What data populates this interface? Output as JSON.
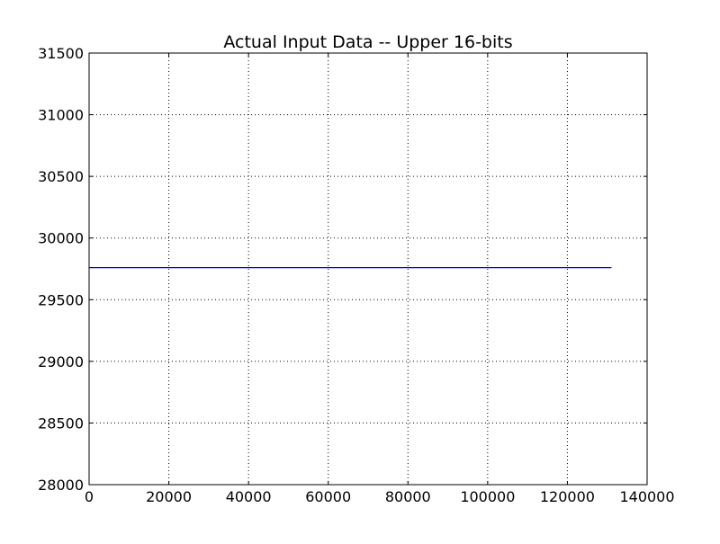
{
  "chart_data": {
    "type": "line",
    "title": "Actual Input Data -- Upper 16-bits",
    "xlabel": "",
    "ylabel": "",
    "xlim": [
      0,
      140000
    ],
    "ylim": [
      28000,
      31500
    ],
    "xticks": [
      0,
      20000,
      40000,
      60000,
      80000,
      100000,
      120000,
      140000
    ],
    "yticks": [
      28000,
      28500,
      29000,
      29500,
      30000,
      30500,
      31000,
      31500
    ],
    "grid": true,
    "legend": "none",
    "series": [
      {
        "color": "#0000ff",
        "x": [
          0,
          131072
        ],
        "y": [
          29760,
          29760
        ]
      }
    ]
  }
}
